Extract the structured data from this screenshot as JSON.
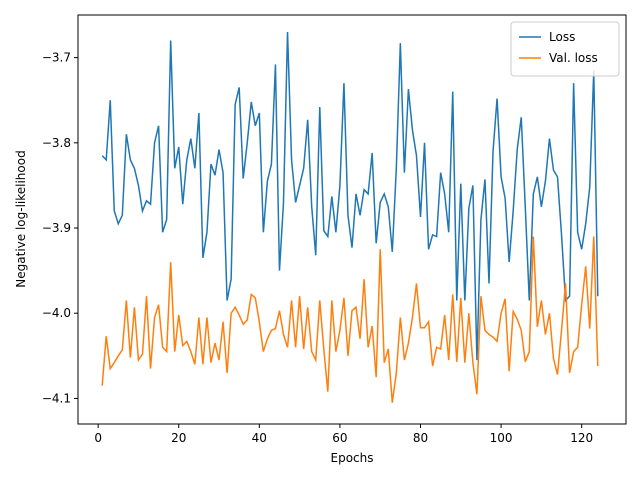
{
  "chart_data": {
    "type": "line",
    "xlabel": "Epochs",
    "ylabel": "Negative log-likelihood",
    "x": [
      1,
      2,
      3,
      4,
      5,
      6,
      7,
      8,
      9,
      10,
      11,
      12,
      13,
      14,
      15,
      16,
      17,
      18,
      19,
      20,
      21,
      22,
      23,
      24,
      25,
      26,
      27,
      28,
      29,
      30,
      31,
      32,
      33,
      34,
      35,
      36,
      37,
      38,
      39,
      40,
      41,
      42,
      43,
      44,
      45,
      46,
      47,
      48,
      49,
      50,
      51,
      52,
      53,
      54,
      55,
      56,
      57,
      58,
      59,
      60,
      61,
      62,
      63,
      64,
      65,
      66,
      67,
      68,
      69,
      70,
      71,
      72,
      73,
      74,
      75,
      76,
      77,
      78,
      79,
      80,
      81,
      82,
      83,
      84,
      85,
      86,
      87,
      88,
      89,
      90,
      91,
      92,
      93,
      94,
      95,
      96,
      97,
      98,
      99,
      100,
      101,
      102,
      103,
      104,
      105,
      106,
      107,
      108,
      109,
      110,
      111,
      112,
      113,
      114,
      115,
      116,
      117,
      118,
      119,
      120,
      121,
      122,
      123,
      124
    ],
    "series": [
      {
        "name": "Loss",
        "color": "#1f77b4",
        "values": [
          -3.815,
          -3.82,
          -3.75,
          -3.88,
          -3.895,
          -3.885,
          -3.79,
          -3.82,
          -3.83,
          -3.85,
          -3.88,
          -3.868,
          -3.872,
          -3.8,
          -3.78,
          -3.905,
          -3.89,
          -3.68,
          -3.83,
          -3.805,
          -3.872,
          -3.82,
          -3.795,
          -3.83,
          -3.765,
          -3.935,
          -3.905,
          -3.825,
          -3.838,
          -3.808,
          -3.835,
          -3.985,
          -3.96,
          -3.755,
          -3.735,
          -3.842,
          -3.8,
          -3.752,
          -3.78,
          -3.765,
          -3.905,
          -3.845,
          -3.825,
          -3.708,
          -3.95,
          -3.87,
          -3.67,
          -3.82,
          -3.87,
          -3.85,
          -3.83,
          -3.773,
          -3.875,
          -3.932,
          -3.758,
          -3.903,
          -3.91,
          -3.863,
          -3.905,
          -3.85,
          -3.73,
          -3.885,
          -3.923,
          -3.86,
          -3.885,
          -3.855,
          -3.86,
          -3.812,
          -3.918,
          -3.87,
          -3.86,
          -3.875,
          -3.928,
          -3.83,
          -3.683,
          -3.835,
          -3.737,
          -3.785,
          -3.815,
          -3.887,
          -3.8,
          -3.925,
          -3.908,
          -3.91,
          -3.835,
          -3.86,
          -3.905,
          -3.74,
          -3.985,
          -3.848,
          -3.985,
          -3.877,
          -3.85,
          -4.055,
          -3.89,
          -3.843,
          -3.965,
          -3.81,
          -3.748,
          -3.84,
          -3.865,
          -3.94,
          -3.88,
          -3.808,
          -3.77,
          -3.875,
          -3.985,
          -3.86,
          -3.84,
          -3.875,
          -3.845,
          -3.795,
          -3.832,
          -3.84,
          -3.908,
          -3.985,
          -3.98,
          -3.73,
          -3.905,
          -3.925,
          -3.895,
          -3.852,
          -3.715,
          -3.98
        ]
      },
      {
        "name": "Val. loss",
        "color": "#ff7f0e",
        "values": [
          -4.085,
          -4.027,
          -4.065,
          -4.058,
          -4.05,
          -4.043,
          -3.985,
          -4.052,
          -3.993,
          -4.055,
          -4.048,
          -3.98,
          -4.065,
          -4.005,
          -3.99,
          -4.04,
          -4.045,
          -3.94,
          -4.045,
          -4.002,
          -4.038,
          -4.033,
          -4.045,
          -4.06,
          -4.005,
          -4.06,
          -4.005,
          -4.058,
          -4.035,
          -4.055,
          -4.01,
          -4.07,
          -4.0,
          -3.993,
          -4.002,
          -4.013,
          -4.008,
          -3.978,
          -3.982,
          -4.01,
          -4.045,
          -4.03,
          -4.02,
          -4.018,
          -3.997,
          -4.025,
          -4.04,
          -3.985,
          -4.04,
          -3.98,
          -4.042,
          -3.993,
          -4.045,
          -4.055,
          -3.985,
          -4.042,
          -4.092,
          -3.985,
          -4.045,
          -4.02,
          -3.982,
          -4.05,
          -3.997,
          -3.993,
          -4.03,
          -3.96,
          -4.04,
          -4.015,
          -4.075,
          -3.925,
          -4.058,
          -4.042,
          -4.105,
          -4.07,
          -4.005,
          -4.055,
          -4.035,
          -4.005,
          -3.965,
          -4.017,
          -4.017,
          -4.01,
          -4.062,
          -4.04,
          -4.042,
          -4.002,
          -4.055,
          -3.978,
          -4.057,
          -3.982,
          -4.058,
          -4.0,
          -4.058,
          -4.095,
          -3.98,
          -4.02,
          -4.025,
          -4.028,
          -4.033,
          -4.0,
          -3.983,
          -4.068,
          -3.998,
          -4.007,
          -4.02,
          -4.057,
          -4.045,
          -3.91,
          -4.016,
          -3.985,
          -4.025,
          -4.0,
          -4.053,
          -4.072,
          -4.02,
          -3.965,
          -4.07,
          -4.045,
          -4.04,
          -3.99,
          -3.945,
          -4.018,
          -3.91,
          -4.062
        ]
      }
    ],
    "xlim": [
      -5,
      131
    ],
    "ylim": [
      -4.13,
      -3.65
    ],
    "xticks": [
      0,
      20,
      40,
      60,
      80,
      100,
      120
    ],
    "yticks": [
      {
        "value": -3.7,
        "label": "−3.7"
      },
      {
        "value": -3.8,
        "label": "−3.8"
      },
      {
        "value": -3.9,
        "label": "−3.9"
      },
      {
        "value": -4.0,
        "label": "−4.0"
      },
      {
        "value": -4.1,
        "label": "−4.1"
      }
    ],
    "legend": "upper right"
  }
}
